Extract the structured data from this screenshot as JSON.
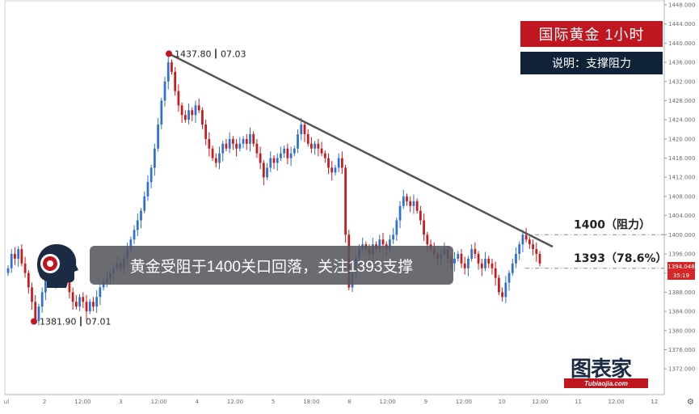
{
  "header": {
    "title": "国际黄金  1小时",
    "note": "说明：支撑阻力"
  },
  "banner": {
    "text": "黄金受阻于1400关口回落，关注1393支撑"
  },
  "levels": [
    {
      "label": "1400（阻力）",
      "value": 1400
    },
    {
      "label": "1393（78.6%）",
      "value": 1393
    }
  ],
  "price_tags": [
    {
      "text": "1394.048",
      "color": "#d62728"
    },
    {
      "text": "35:19",
      "color": "#d62728"
    }
  ],
  "logo": {
    "main": "图表家",
    "sub": "Tubiaojia.com"
  },
  "chart_data": {
    "type": "candlestick",
    "y_axis": {
      "min": 1370,
      "max": 1448,
      "ticks": [
        "1448.000",
        "1444.000",
        "1440.000",
        "1436.000",
        "1432.000",
        "1428.000",
        "1424.000",
        "1420.000",
        "1416.000",
        "1412.000",
        "1408.000",
        "1404.000",
        "1400.000",
        "1396.000",
        "1392.000",
        "1388.000",
        "1384.000",
        "1380.000",
        "1376.000",
        "1372.000"
      ]
    },
    "x_axis": {
      "ticks": [
        "ul",
        "2",
        "12:00",
        "3",
        "12:00",
        "4",
        "12:00",
        "5",
        "18:00",
        "8",
        "12:00",
        "9",
        "12:00",
        "10",
        "12:00",
        "11",
        "12:00",
        "12"
      ]
    },
    "annotations": [
      {
        "price": "1437.80",
        "date": "07.03",
        "value": 1437.8
      },
      {
        "price": "1381.90",
        "date": "07.01",
        "value": 1381.9
      }
    ],
    "trendline": {
      "from": 1437.8,
      "to": 1397.5
    },
    "closes": [
      1393,
      1396,
      1395,
      1397,
      1394,
      1392,
      1389,
      1386,
      1382,
      1385,
      1388,
      1391,
      1393,
      1390,
      1392,
      1395,
      1394,
      1391,
      1388,
      1386,
      1385,
      1387,
      1386,
      1384,
      1386,
      1385,
      1387,
      1389,
      1390,
      1391,
      1392,
      1393,
      1394,
      1393,
      1395,
      1397,
      1399,
      1401,
      1403,
      1405,
      1408,
      1411,
      1414,
      1418,
      1423,
      1428,
      1432,
      1436,
      1434,
      1430,
      1427,
      1425,
      1424,
      1426,
      1425,
      1427,
      1426,
      1423,
      1420,
      1418,
      1416,
      1415,
      1417,
      1419,
      1418,
      1420,
      1419,
      1418,
      1419,
      1420,
      1419,
      1421,
      1419,
      1417,
      1415,
      1412,
      1414,
      1416,
      1415,
      1416,
      1417,
      1418,
      1416,
      1417,
      1418,
      1421,
      1423,
      1421,
      1419,
      1418,
      1419,
      1418,
      1417,
      1416,
      1414,
      1413,
      1414,
      1416,
      1414,
      1400,
      1389,
      1392,
      1395,
      1397,
      1398,
      1397,
      1396,
      1398,
      1397,
      1399,
      1398,
      1397,
      1399,
      1400,
      1403,
      1406,
      1408,
      1407,
      1406,
      1407,
      1405,
      1403,
      1400,
      1398,
      1397,
      1396,
      1395,
      1396,
      1397,
      1395,
      1394,
      1395,
      1396,
      1394,
      1393,
      1395,
      1397,
      1396,
      1394,
      1393,
      1395,
      1394,
      1393,
      1391,
      1388,
      1387,
      1390,
      1392,
      1394,
      1396,
      1398,
      1400,
      1399,
      1398,
      1397,
      1396,
      1394
    ]
  }
}
